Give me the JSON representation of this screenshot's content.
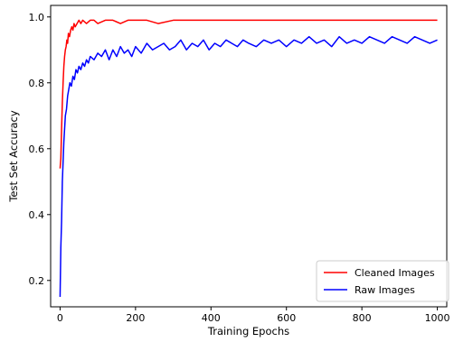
{
  "chart_data": {
    "type": "line",
    "title": "",
    "xlabel": "Training Epochs",
    "ylabel": "Test Set Accuracy",
    "xlim": [
      -25,
      1025
    ],
    "ylim": [
      0.12,
      1.035
    ],
    "xticks": [
      0,
      200,
      400,
      600,
      800,
      1000
    ],
    "xtick_labels": [
      "0",
      "200",
      "400",
      "600",
      "800",
      "1000"
    ],
    "yticks": [
      0.2,
      0.4,
      0.6,
      0.8,
      1.0
    ],
    "ytick_labels": [
      "0.2",
      "0.4",
      "0.6",
      "0.8",
      "1.0"
    ],
    "grid": false,
    "legend_position": "lower-right",
    "series": [
      {
        "name": "Cleaned Images",
        "color": "#ff0000",
        "x": [
          0,
          2,
          4,
          6,
          8,
          10,
          12,
          14,
          16,
          18,
          20,
          22,
          25,
          28,
          31,
          34,
          37,
          40,
          45,
          50,
          55,
          60,
          70,
          80,
          90,
          100,
          120,
          140,
          160,
          180,
          200,
          230,
          260,
          300,
          340,
          380,
          420,
          460,
          500,
          550,
          600,
          650,
          700,
          750,
          800,
          850,
          900,
          950,
          1000
        ],
        "values": [
          0.54,
          0.57,
          0.66,
          0.74,
          0.8,
          0.85,
          0.88,
          0.9,
          0.91,
          0.93,
          0.92,
          0.95,
          0.94,
          0.96,
          0.97,
          0.96,
          0.98,
          0.97,
          0.98,
          0.99,
          0.98,
          0.99,
          0.98,
          0.99,
          0.99,
          0.98,
          0.99,
          0.99,
          0.98,
          0.99,
          0.99,
          0.99,
          0.98,
          0.99,
          0.99,
          0.99,
          0.99,
          0.99,
          0.99,
          0.99,
          0.99,
          0.99,
          0.99,
          0.99,
          0.99,
          0.99,
          0.99,
          0.99,
          0.99
        ]
      },
      {
        "name": "Raw Images",
        "color": "#0000ff",
        "x": [
          0,
          2,
          4,
          6,
          8,
          10,
          12,
          14,
          17,
          20,
          23,
          26,
          30,
          34,
          38,
          42,
          46,
          50,
          55,
          60,
          65,
          70,
          75,
          80,
          90,
          100,
          110,
          120,
          130,
          140,
          150,
          160,
          170,
          180,
          190,
          200,
          215,
          230,
          245,
          260,
          275,
          290,
          305,
          320,
          335,
          350,
          365,
          380,
          395,
          410,
          425,
          440,
          455,
          470,
          485,
          500,
          520,
          540,
          560,
          580,
          600,
          620,
          640,
          660,
          680,
          700,
          720,
          740,
          760,
          780,
          800,
          820,
          840,
          860,
          880,
          900,
          920,
          940,
          960,
          980,
          1000
        ],
        "values": [
          0.15,
          0.3,
          0.38,
          0.5,
          0.56,
          0.62,
          0.66,
          0.7,
          0.72,
          0.76,
          0.78,
          0.8,
          0.79,
          0.82,
          0.81,
          0.84,
          0.83,
          0.85,
          0.84,
          0.86,
          0.85,
          0.87,
          0.86,
          0.88,
          0.87,
          0.89,
          0.88,
          0.9,
          0.87,
          0.9,
          0.88,
          0.91,
          0.89,
          0.9,
          0.88,
          0.91,
          0.89,
          0.92,
          0.9,
          0.91,
          0.92,
          0.9,
          0.91,
          0.93,
          0.9,
          0.92,
          0.91,
          0.93,
          0.9,
          0.92,
          0.91,
          0.93,
          0.92,
          0.91,
          0.93,
          0.92,
          0.91,
          0.93,
          0.92,
          0.93,
          0.91,
          0.93,
          0.92,
          0.94,
          0.92,
          0.93,
          0.91,
          0.94,
          0.92,
          0.93,
          0.92,
          0.94,
          0.93,
          0.92,
          0.94,
          0.93,
          0.92,
          0.94,
          0.93,
          0.92,
          0.93
        ]
      }
    ]
  }
}
